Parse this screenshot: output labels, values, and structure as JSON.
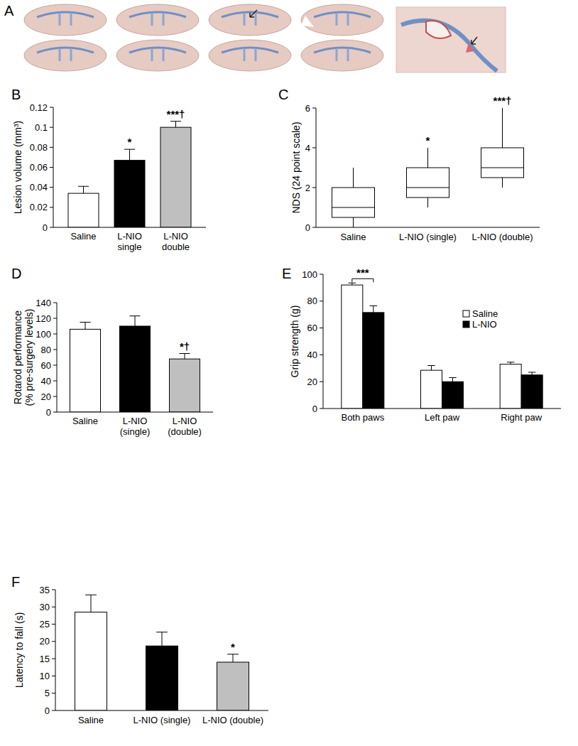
{
  "image_panel": {
    "title": "A"
  },
  "chart_data": [
    {
      "type": "bar",
      "title": "B",
      "categories": [
        "Saline",
        "L-NIO single",
        "L-NIO double"
      ],
      "values": [
        0.034,
        0.067,
        0.1
      ],
      "errors": [
        0.007,
        0.011,
        0.006
      ],
      "colors": [
        "#ffffff",
        "#000000",
        "#bfbfbf"
      ],
      "ylabel": "Lesion volume (mm³)",
      "ylim": [
        0,
        0.12
      ],
      "yticks": [
        0,
        0.02,
        0.04,
        0.06,
        0.08,
        0.1,
        0.12
      ],
      "significance": [
        null,
        "*",
        "***†"
      ]
    },
    {
      "type": "box",
      "title": "C",
      "categories": [
        "Saline",
        "L-NIO (single)",
        "L-NIO (double)"
      ],
      "min": [
        0,
        1,
        2
      ],
      "q1": [
        0.5,
        1.5,
        2.5
      ],
      "median": [
        1,
        2,
        3
      ],
      "q3": [
        2,
        3,
        4
      ],
      "max": [
        3,
        4,
        6
      ],
      "color": "#ffffff",
      "ylabel": "NDS (24 point scale)",
      "ylim": [
        0,
        6
      ],
      "yticks": [
        0,
        2,
        4,
        6
      ],
      "significance": [
        null,
        "*",
        "***†"
      ]
    },
    {
      "type": "bar",
      "title": "D",
      "categories": [
        "Saline",
        "L-NIO (single)",
        "L-NIO (double)"
      ],
      "values": [
        106,
        110,
        68
      ],
      "errors": [
        9,
        13,
        7
      ],
      "colors": [
        "#ffffff",
        "#000000",
        "#bfbfbf"
      ],
      "ylabel": [
        "Rotarod performance",
        "(% pre-surgery levels)"
      ],
      "ylim": [
        0,
        140
      ],
      "yticks": [
        0,
        20,
        40,
        60,
        80,
        100,
        120,
        140
      ],
      "significance": [
        null,
        null,
        "*†"
      ]
    },
    {
      "type": "bar",
      "title": "E",
      "categories": [
        "Both paws",
        "Left paw",
        "Right paw"
      ],
      "series": [
        {
          "name": "Saline",
          "color": "#ffffff",
          "values": [
            92,
            28.5,
            33
          ],
          "errors": [
            1.5,
            3.5,
            1.5
          ]
        },
        {
          "name": "L-NIO",
          "color": "#000000",
          "values": [
            71.5,
            20,
            25
          ],
          "errors": [
            5,
            3,
            2
          ]
        }
      ],
      "ylabel": "Grip strength (g)",
      "ylim": [
        0,
        100
      ],
      "yticks": [
        0,
        20,
        40,
        60,
        80,
        100
      ],
      "legend": "right",
      "significance": [
        "***",
        null,
        null
      ]
    },
    {
      "type": "bar",
      "title": "F",
      "categories": [
        "Saline",
        "L-NIO (single)",
        "L-NIO (double)"
      ],
      "values": [
        28.5,
        18.7,
        14
      ],
      "errors": [
        5,
        4,
        2.3
      ],
      "colors": [
        "#ffffff",
        "#000000",
        "#bfbfbf"
      ],
      "ylabel": "Latency to fall (s)",
      "ylim": [
        0,
        35
      ],
      "yticks": [
        0,
        5,
        10,
        15,
        20,
        25,
        30,
        35
      ],
      "significance": [
        null,
        null,
        "*"
      ]
    }
  ]
}
